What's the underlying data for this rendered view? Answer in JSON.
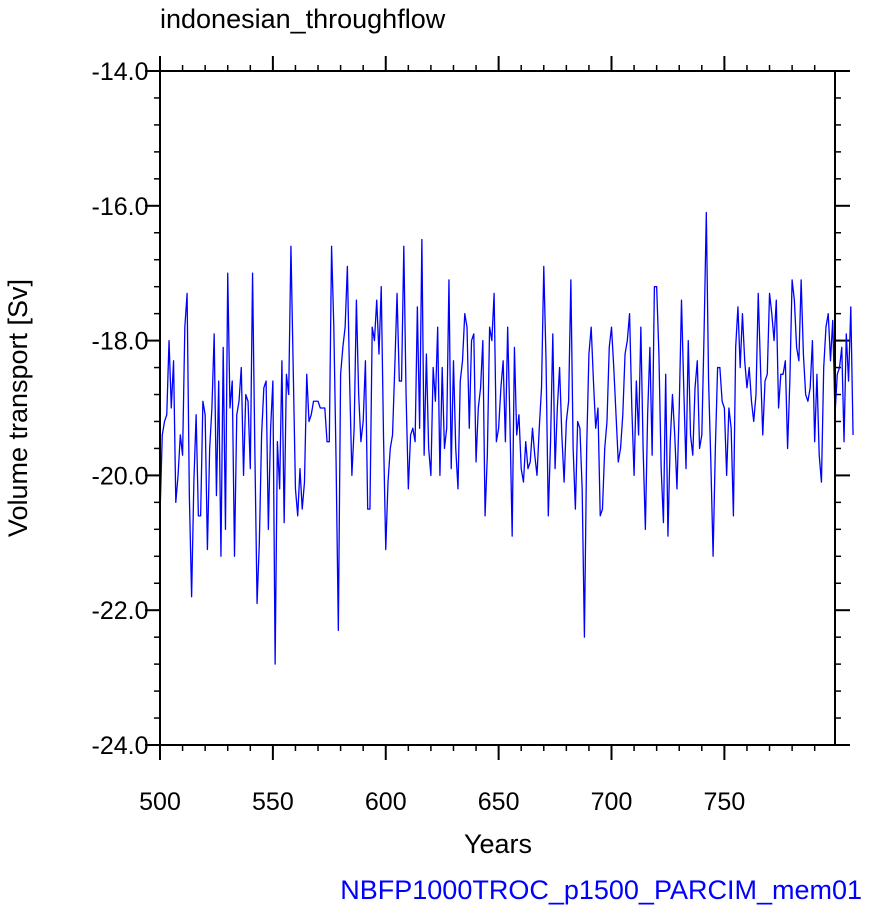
{
  "chart_data": {
    "type": "line",
    "title": "indonesian_throughflow",
    "xlabel": "Years",
    "ylabel": "Volume transport [Sv]",
    "xlim": [
      500,
      799
    ],
    "ylim": [
      -24.0,
      -14.0
    ],
    "x_ticks": [
      500,
      550,
      600,
      650,
      700,
      750
    ],
    "x_tick_labels": [
      "500",
      "550",
      "600",
      "650",
      "700",
      "750"
    ],
    "y_ticks": [
      -24.0,
      -22.0,
      -20.0,
      -18.0,
      -16.0,
      -14.0
    ],
    "y_tick_labels": [
      "-24.0",
      "-22.0",
      "-20.0",
      "-18.0",
      "-16.0",
      "-14.0"
    ],
    "grid": false,
    "line_color": "#0000ff",
    "series": [
      {
        "x_start": 500,
        "x_step": 1,
        "values": [
          -20.6,
          -19.4,
          -19.2,
          -19.1,
          -18.0,
          -19.0,
          -18.3,
          -20.4,
          -20.0,
          -19.4,
          -19.7,
          -17.8,
          -17.3,
          -20.3,
          -21.8,
          -20.1,
          -19.1,
          -20.6,
          -20.6,
          -18.9,
          -19.1,
          -21.1,
          -19.6,
          -19.0,
          -17.9,
          -20.3,
          -18.6,
          -21.2,
          -18.1,
          -20.8,
          -17.0,
          -19.0,
          -18.6,
          -21.2,
          -19.1,
          -18.9,
          -18.4,
          -20.0,
          -18.8,
          -18.9,
          -19.9,
          -17.0,
          -19.6,
          -21.9,
          -21.0,
          -19.4,
          -18.7,
          -18.6,
          -20.8,
          -19.3,
          -18.6,
          -22.8,
          -19.5,
          -20.2,
          -18.3,
          -20.7,
          -18.5,
          -18.8,
          -16.6,
          -18.4,
          -20.2,
          -20.6,
          -19.9,
          -20.5,
          -20.1,
          -18.5,
          -19.2,
          -19.1,
          -18.9,
          -18.9,
          -18.9,
          -19.0,
          -19.0,
          -19.0,
          -19.5,
          -19.5,
          -16.6,
          -17.8,
          -19.8,
          -22.3,
          -18.5,
          -18.1,
          -17.8,
          -16.9,
          -18.6,
          -20.0,
          -19.3,
          -17.4,
          -18.8,
          -19.5,
          -19.2,
          -18.3,
          -20.5,
          -20.5,
          -17.8,
          -18.0,
          -17.4,
          -18.2,
          -17.2,
          -19.4,
          -21.1,
          -20.1,
          -19.6,
          -19.4,
          -18.4,
          -17.3,
          -18.6,
          -18.6,
          -16.6,
          -18.8,
          -20.2,
          -19.4,
          -19.3,
          -19.5,
          -17.5,
          -19.3,
          -16.5,
          -19.7,
          -18.2,
          -19.6,
          -20.0,
          -18.4,
          -18.9,
          -17.8,
          -20.0,
          -18.4,
          -19.6,
          -19.3,
          -17.1,
          -19.9,
          -18.3,
          -19.6,
          -20.2,
          -18.6,
          -18.3,
          -17.6,
          -17.8,
          -19.3,
          -18.0,
          -17.9,
          -19.8,
          -19.0,
          -18.7,
          -18.0,
          -20.6,
          -19.7,
          -17.8,
          -18.0,
          -17.3,
          -19.5,
          -19.3,
          -18.7,
          -18.3,
          -19.5,
          -17.8,
          -19.2,
          -20.9,
          -18.1,
          -19.4,
          -19.1,
          -19.9,
          -20.1,
          -19.5,
          -19.9,
          -19.8,
          -19.3,
          -19.7,
          -20.0,
          -19.3,
          -18.7,
          -16.9,
          -18.3,
          -20.6,
          -19.5,
          -17.9,
          -19.9,
          -19.0,
          -18.4,
          -19.4,
          -20.1,
          -19.2,
          -18.9,
          -17.1,
          -19.6,
          -20.5,
          -19.2,
          -19.3,
          -20.2,
          -22.4,
          -19.6,
          -18.2,
          -17.8,
          -18.6,
          -19.3,
          -19.0,
          -20.6,
          -20.5,
          -19.6,
          -19.2,
          -18.1,
          -17.8,
          -18.4,
          -19.1,
          -19.8,
          -19.6,
          -19.1,
          -18.2,
          -18.0,
          -17.6,
          -19.0,
          -20.0,
          -18.6,
          -19.4,
          -17.8,
          -19.6,
          -20.8,
          -19.1,
          -18.1,
          -19.7,
          -17.2,
          -17.2,
          -18.2,
          -19.9,
          -20.7,
          -18.5,
          -20.9,
          -19.5,
          -18.8,
          -19.4,
          -20.2,
          -19.0,
          -17.4,
          -18.7,
          -19.9,
          -18.0,
          -19.4,
          -19.7,
          -18.7,
          -18.3,
          -19.6,
          -19.4,
          -17.9,
          -16.1,
          -18.6,
          -19.8,
          -21.2,
          -19.6,
          -18.4,
          -18.4,
          -18.9,
          -19.0,
          -20.0,
          -19.0,
          -19.3,
          -20.6,
          -18.1,
          -17.5,
          -18.4,
          -17.6,
          -18.3,
          -18.7,
          -18.4,
          -18.9,
          -19.2,
          -18.8,
          -17.3,
          -18.4,
          -19.4,
          -18.6,
          -18.5,
          -17.3,
          -17.6,
          -18.0,
          -17.4,
          -19.0,
          -18.5,
          -18.5,
          -18.3,
          -19.6,
          -18.6,
          -17.1,
          -17.4,
          -18.1,
          -18.3,
          -17.1,
          -18.2,
          -18.8,
          -18.9,
          -18.7,
          -18.0,
          -19.5,
          -18.5,
          -19.7,
          -20.1,
          -18.4,
          -17.8,
          -17.6,
          -18.3,
          -17.7,
          -19.1,
          -18.5,
          -18.4,
          -18.1,
          -19.5,
          -17.9,
          -18.6,
          -17.5,
          -19.4
        ]
      }
    ]
  },
  "footer_label": "NBFP1000TROC_p1500_PARCIM_mem01",
  "footer_color": "#0000ff"
}
